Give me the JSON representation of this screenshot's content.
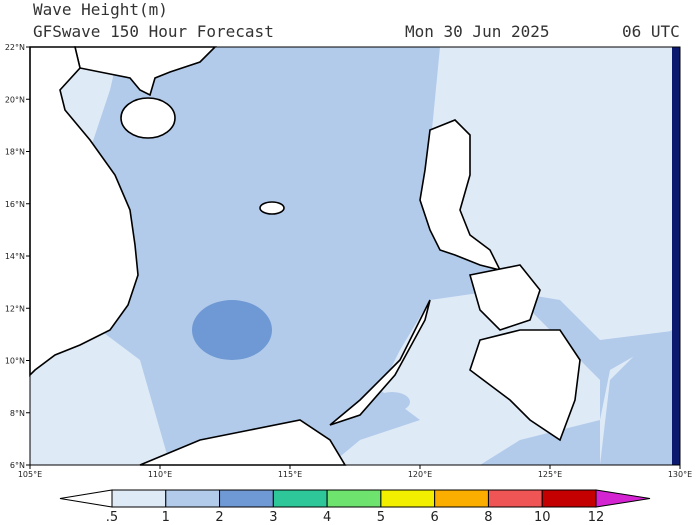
{
  "header": {
    "title": "Wave Height(m)",
    "subtitle": "GFSwave 150 Hour Forecast",
    "date": "Mon 30 Jun 2025",
    "time": "06 UTC"
  },
  "map": {
    "lat_labels": [
      "6°N",
      "8°N",
      "10°N",
      "12°N",
      "14°N",
      "16°N",
      "18°N",
      "20°N",
      "22°N"
    ],
    "lon_labels": [
      "105°E",
      "110°E",
      "115°E",
      "120°E",
      "125°E",
      "130°E"
    ]
  },
  "colorbar": {
    "labels": [
      ".5",
      "1",
      "2",
      "3",
      "4",
      "5",
      "6",
      "8",
      "10",
      "12"
    ],
    "colors": [
      "#ffffff",
      "#dfeaf7",
      "#b2cbeb",
      "#6f99d4",
      "#2ec79a",
      "#6ee46e",
      "#f2ef00",
      "#fbae00",
      "#f05555",
      "#c40000",
      "#d423d0"
    ]
  }
}
